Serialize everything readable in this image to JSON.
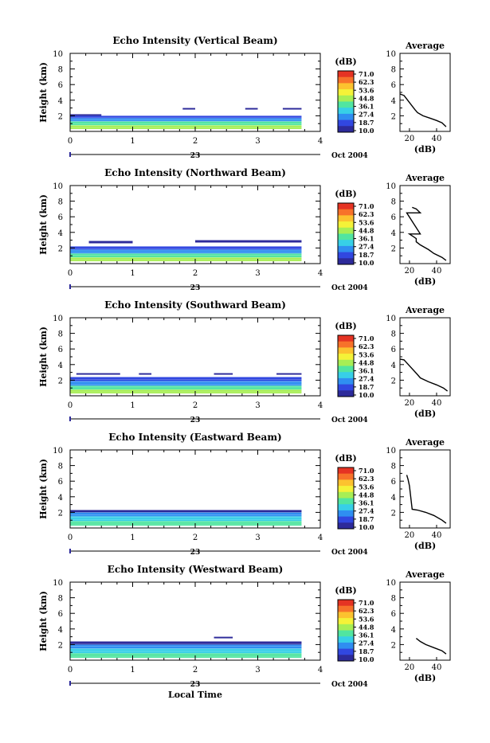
{
  "figure": {
    "xlabel": "Local Time",
    "date_label": "Oct 2004",
    "day_label": "23"
  },
  "colorbar": {
    "unit": "(dB)",
    "ticks": [
      "71.0",
      "62.3",
      "53.6",
      "44.8",
      "36.1",
      "27.4",
      "18.7",
      "10.0"
    ],
    "colors": [
      "#e53323",
      "#f7722a",
      "#fcc22f",
      "#f4f238",
      "#a7ee55",
      "#51e5a0",
      "#37cfe7",
      "#2f8ef1",
      "#3147e0",
      "#2d2a9a"
    ]
  },
  "chart_data": [
    {
      "type": "heatmap",
      "title": "Echo Intensity (Vertical Beam)",
      "ylabel": "Height (km)",
      "xlim": [
        0,
        4
      ],
      "ylim": [
        0,
        10
      ],
      "xticks": [
        0,
        1,
        2,
        3,
        4
      ],
      "yticks": [
        2,
        4,
        6,
        8,
        10
      ],
      "echo_top_km": 2.0,
      "layers": [
        {
          "x": [
            0.0,
            3.7
          ],
          "y": [
            0.3,
            0.8
          ],
          "dB": 44
        },
        {
          "x": [
            0.0,
            3.7
          ],
          "y": [
            0.8,
            1.3
          ],
          "dB": 36
        },
        {
          "x": [
            0.0,
            3.7
          ],
          "y": [
            1.3,
            1.7
          ],
          "dB": 27
        },
        {
          "x": [
            0.0,
            3.7
          ],
          "y": [
            1.7,
            2.0
          ],
          "dB": 19
        },
        {
          "x": [
            0.0,
            0.5
          ],
          "y": [
            2.0,
            2.2
          ],
          "dB": 16
        },
        {
          "x": [
            1.8,
            2.0
          ],
          "y": [
            2.8,
            3.0
          ],
          "dB": 12
        },
        {
          "x": [
            2.8,
            3.0
          ],
          "y": [
            2.8,
            3.0
          ],
          "dB": 12
        },
        {
          "x": [
            3.4,
            3.7
          ],
          "y": [
            2.8,
            3.0
          ],
          "dB": 12
        }
      ],
      "average": {
        "title": "Average",
        "xlabel": "(dB)",
        "xlim": [
          13,
          50
        ],
        "ylim": [
          0,
          10
        ],
        "xticks": [
          20,
          40
        ],
        "profile": [
          [
            47,
            0.6
          ],
          [
            44,
            1.1
          ],
          [
            40,
            1.4
          ],
          [
            35,
            1.7
          ],
          [
            30,
            2.0
          ],
          [
            26,
            2.4
          ],
          [
            24,
            2.8
          ],
          [
            16,
            4.6
          ],
          [
            13,
            4.8
          ]
        ]
      }
    },
    {
      "type": "heatmap",
      "title": "Echo Intensity (Northward Beam)",
      "ylabel": "Height (km)",
      "xlim": [
        0,
        4
      ],
      "ylim": [
        0,
        10
      ],
      "xticks": [
        0,
        1,
        2,
        3,
        4
      ],
      "yticks": [
        2,
        4,
        6,
        8,
        10
      ],
      "echo_top_km": 2.2,
      "layers": [
        {
          "x": [
            0.0,
            3.7
          ],
          "y": [
            0.3,
            0.8
          ],
          "dB": 44
        },
        {
          "x": [
            0.0,
            3.7
          ],
          "y": [
            0.8,
            1.3
          ],
          "dB": 36
        },
        {
          "x": [
            0.0,
            3.7
          ],
          "y": [
            1.3,
            1.8
          ],
          "dB": 27
        },
        {
          "x": [
            0.0,
            3.7
          ],
          "y": [
            1.8,
            2.2
          ],
          "dB": 19
        },
        {
          "x": [
            0.3,
            1.0
          ],
          "y": [
            2.6,
            2.9
          ],
          "dB": 12
        },
        {
          "x": [
            2.0,
            3.7
          ],
          "y": [
            2.7,
            3.0
          ],
          "dB": 12
        }
      ],
      "average": {
        "title": "Average",
        "xlabel": "(dB)",
        "xlim": [
          13,
          50
        ],
        "ylim": [
          0,
          10
        ],
        "xticks": [
          20,
          40
        ],
        "profile": [
          [
            47,
            0.4
          ],
          [
            44,
            0.8
          ],
          [
            38,
            1.3
          ],
          [
            34,
            1.8
          ],
          [
            28,
            2.4
          ],
          [
            25,
            2.8
          ],
          [
            25,
            3.2
          ],
          [
            20,
            3.8
          ],
          [
            28,
            3.8
          ],
          [
            18,
            6.5
          ],
          [
            28,
            6.5
          ],
          [
            25,
            7.0
          ],
          [
            22,
            7.2
          ]
        ]
      }
    },
    {
      "type": "heatmap",
      "title": "Echo Intensity (Southward Beam)",
      "ylabel": "Height (km)",
      "xlim": [
        0,
        4
      ],
      "ylim": [
        0,
        10
      ],
      "xticks": [
        0,
        1,
        2,
        3,
        4
      ],
      "yticks": [
        2,
        4,
        6,
        8,
        10
      ],
      "echo_top_km": 2.4,
      "layers": [
        {
          "x": [
            0.0,
            3.7
          ],
          "y": [
            0.3,
            0.8
          ],
          "dB": 44
        },
        {
          "x": [
            0.0,
            3.7
          ],
          "y": [
            0.8,
            1.3
          ],
          "dB": 36
        },
        {
          "x": [
            0.0,
            3.7
          ],
          "y": [
            1.3,
            1.9
          ],
          "dB": 27
        },
        {
          "x": [
            0.0,
            3.7
          ],
          "y": [
            1.9,
            2.4
          ],
          "dB": 19
        },
        {
          "x": [
            0.1,
            0.8
          ],
          "y": [
            2.7,
            2.9
          ],
          "dB": 12
        },
        {
          "x": [
            1.1,
            1.3
          ],
          "y": [
            2.7,
            2.9
          ],
          "dB": 12
        },
        {
          "x": [
            2.3,
            2.6
          ],
          "y": [
            2.7,
            2.9
          ],
          "dB": 12
        },
        {
          "x": [
            3.3,
            3.7
          ],
          "y": [
            2.7,
            2.9
          ],
          "dB": 12
        }
      ],
      "average": {
        "title": "Average",
        "xlabel": "(dB)",
        "xlim": [
          13,
          50
        ],
        "ylim": [
          0,
          10
        ],
        "xticks": [
          20,
          40
        ],
        "profile": [
          [
            48,
            0.6
          ],
          [
            45,
            1.0
          ],
          [
            40,
            1.4
          ],
          [
            34,
            1.8
          ],
          [
            28,
            2.3
          ],
          [
            26,
            2.7
          ],
          [
            16,
            4.6
          ],
          [
            13,
            4.7
          ]
        ]
      }
    },
    {
      "type": "heatmap",
      "title": "Echo Intensity (Eastward Beam)",
      "ylabel": "Height (km)",
      "xlim": [
        0,
        4
      ],
      "ylim": [
        0,
        10
      ],
      "xticks": [
        0,
        1,
        2,
        3,
        4
      ],
      "yticks": [
        2,
        4,
        6,
        8,
        10
      ],
      "echo_top_km": 2.3,
      "layers": [
        {
          "x": [
            0.0,
            3.7
          ],
          "y": [
            0.3,
            0.9
          ],
          "dB": 36
        },
        {
          "x": [
            0.0,
            3.7
          ],
          "y": [
            0.9,
            1.5
          ],
          "dB": 30
        },
        {
          "x": [
            0.0,
            3.7
          ],
          "y": [
            1.5,
            2.0
          ],
          "dB": 24
        },
        {
          "x": [
            0.0,
            3.7
          ],
          "y": [
            2.0,
            2.3
          ],
          "dB": 16
        }
      ],
      "average": {
        "title": "Average",
        "xlabel": "(dB)",
        "xlim": [
          13,
          50
        ],
        "ylim": [
          0,
          10
        ],
        "xticks": [
          20,
          40
        ],
        "profile": [
          [
            47,
            0.6
          ],
          [
            44,
            1.0
          ],
          [
            38,
            1.6
          ],
          [
            32,
            2.0
          ],
          [
            26,
            2.3
          ],
          [
            22,
            2.4
          ],
          [
            20,
            5.4
          ],
          [
            19,
            6.2
          ],
          [
            18,
            6.8
          ]
        ]
      }
    },
    {
      "type": "heatmap",
      "title": "Echo Intensity (Westward Beam)",
      "ylabel": "Height (km)",
      "xlim": [
        0,
        4
      ],
      "ylim": [
        0,
        10
      ],
      "xticks": [
        0,
        1,
        2,
        3,
        4
      ],
      "yticks": [
        2,
        4,
        6,
        8,
        10
      ],
      "echo_top_km": 2.4,
      "layers": [
        {
          "x": [
            0.0,
            3.7
          ],
          "y": [
            0.3,
            0.9
          ],
          "dB": 36
        },
        {
          "x": [
            0.0,
            3.7
          ],
          "y": [
            0.9,
            1.5
          ],
          "dB": 30
        },
        {
          "x": [
            0.0,
            3.7
          ],
          "y": [
            1.5,
            2.0
          ],
          "dB": 24
        },
        {
          "x": [
            0.0,
            3.7
          ],
          "y": [
            2.0,
            2.4
          ],
          "dB": 16
        },
        {
          "x": [
            2.3,
            2.6
          ],
          "y": [
            2.8,
            3.0
          ],
          "dB": 12
        }
      ],
      "average": {
        "title": "Average",
        "xlabel": "(dB)",
        "xlim": [
          13,
          50
        ],
        "ylim": [
          0,
          10
        ],
        "xticks": [
          20,
          40
        ],
        "profile": [
          [
            47,
            0.8
          ],
          [
            44,
            1.2
          ],
          [
            38,
            1.6
          ],
          [
            32,
            2.0
          ],
          [
            28,
            2.4
          ],
          [
            25,
            2.8
          ]
        ]
      }
    }
  ]
}
